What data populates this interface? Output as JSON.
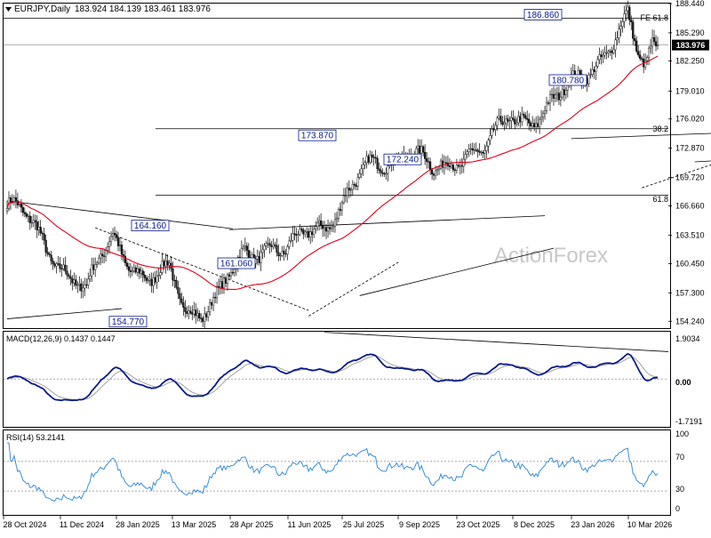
{
  "header": {
    "symbol_line": "EURJPY,Daily",
    "ohlc": "183.924 184.139 183.461 183.976"
  },
  "watermark": "ActionForex",
  "colors": {
    "bull": "#ffffff",
    "bear": "#1a1a1a",
    "ma": "#e0001b",
    "macd": "#0a1a8c",
    "signal": "#9a9a9a",
    "rsi": "#3a8fd6",
    "grid": "#000000",
    "price_line": "#9a9a9a",
    "label_box": "#0a1a8c"
  },
  "chart_data": [
    {
      "type": "candlestick",
      "title": "EURJPY,Daily",
      "ylim": [
        153.5,
        188.44
      ],
      "y_ticks": [
        "188.440",
        "185.290",
        "182.250",
        "179.010",
        "176.020",
        "172.870",
        "169.720",
        "166.660",
        "163.510",
        "160.450",
        "157.300",
        "154.240"
      ],
      "x_ticks": [
        "28 Oct 2024",
        "11 Dec 2024",
        "28 Jan 2025",
        "13 Mar 2025",
        "28 Apr 2025",
        "11 Jun 2025",
        "25 Jul 2025",
        "9 Sep 2025",
        "23 Oct 2025",
        "8 Dec 2025",
        "23 Jan 2026",
        "10 Mar 2026"
      ],
      "current_price": "183.976",
      "current_value": 183.976,
      "moving_average": "55-day SMA (red)",
      "swing_labels": [
        {
          "text": "164.160",
          "value": 164.16
        },
        {
          "text": "154.770",
          "value": 154.77
        },
        {
          "text": "161.060",
          "value": 161.06
        },
        {
          "text": "173.870",
          "value": 173.87
        },
        {
          "text": "172.240",
          "value": 172.24
        },
        {
          "text": "186.860",
          "value": 186.86
        },
        {
          "text": "180.780",
          "value": 180.78
        }
      ],
      "levels": [
        {
          "label": "FE 61.8",
          "value": 186.86
        },
        {
          "label": "38.2",
          "value": 174.97
        },
        {
          "label": "61.8",
          "value": 167.8
        }
      ]
    },
    {
      "type": "line",
      "title": "MACD(12,26,9) 0.1437 0.1447",
      "ylim": [
        -1.7191,
        1.9034
      ],
      "y_ticks": [
        "1.9034",
        "0.00",
        "-1.7191"
      ],
      "current_value": "0.00",
      "series": [
        {
          "name": "MACD",
          "current": 0.1437
        },
        {
          "name": "Signal",
          "current": 0.1447
        }
      ]
    },
    {
      "type": "line",
      "title": "RSI(14) 53.2141",
      "ylim": [
        0,
        100
      ],
      "y_ticks": [
        "100",
        "70",
        "30",
        "0"
      ],
      "levels": [
        70,
        30
      ],
      "current": 53.2141
    }
  ],
  "labels": {
    "fe618": "FE 61.8",
    "fib382": "38.2",
    "fib618": "61.8",
    "macd_title": "MACD(12,26,9) 0.1437 0.1447",
    "rsi_title": "RSI(14) 53.2141",
    "macd_top": "1.9034",
    "macd_zero": "0.00",
    "macd_bottom": "-1.7191",
    "rsi_100": "100",
    "rsi_70": "70",
    "rsi_30": "30",
    "rsi_0": "0"
  }
}
